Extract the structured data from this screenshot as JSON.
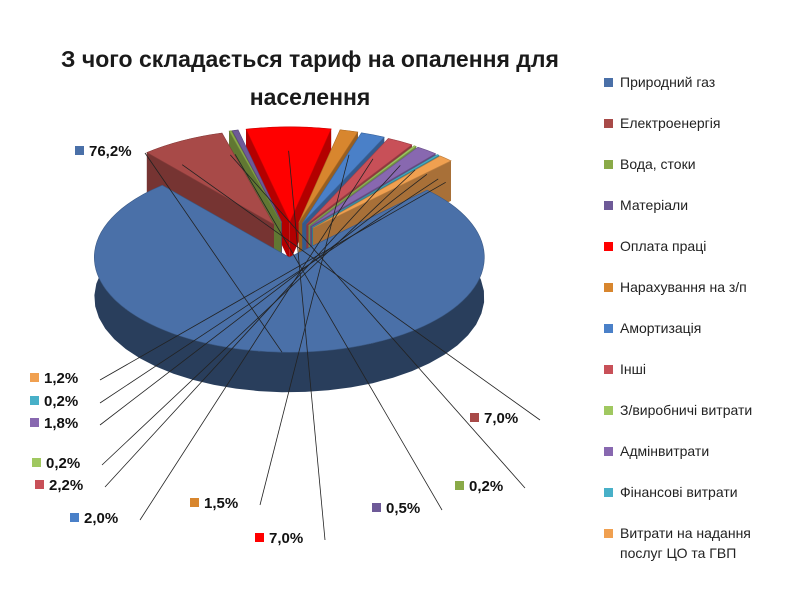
{
  "chart_data": {
    "type": "pie",
    "title": "З чого складається тариф на опалення для населення",
    "legend_position": "right",
    "slices": [
      {
        "label": "Природний газ",
        "value": 76.2,
        "display": "76,2%",
        "color": "#4a70a8"
      },
      {
        "label": "Електроенергія",
        "value": 7.0,
        "display": "7,0%",
        "color": "#a84a48"
      },
      {
        "label": "Вода, стоки",
        "value": 0.2,
        "display": "0,2%",
        "color": "#8aaa48"
      },
      {
        "label": "Матеріали",
        "value": 0.5,
        "display": "0,5%",
        "color": "#6e5a98"
      },
      {
        "label": "Оплата праці",
        "value": 7.0,
        "display": "7,0%",
        "color": "#ff0000"
      },
      {
        "label": "Нарахування на з/п",
        "value": 1.5,
        "display": "1,5%",
        "color": "#d8862e"
      },
      {
        "label": "Амортизація",
        "value": 2.0,
        "display": "2,0%",
        "color": "#4a80c8"
      },
      {
        "label": "Інші",
        "value": 2.2,
        "display": "2,2%",
        "color": "#c85058"
      },
      {
        "label": "З/виробничі витрати",
        "value": 0.2,
        "display": "0,2%",
        "color": "#a0c860"
      },
      {
        "label": "Адмінвитрати",
        "value": 1.8,
        "display": "1,8%",
        "color": "#8868b0"
      },
      {
        "label": "Фінансові витрати",
        "value": 0.2,
        "display": "0,2%",
        "color": "#48b0c8"
      },
      {
        "label": "Витрати на надання послуг ЦО та ГВП",
        "value": 1.2,
        "display": "1,2%",
        "color": "#f0a050"
      }
    ]
  }
}
